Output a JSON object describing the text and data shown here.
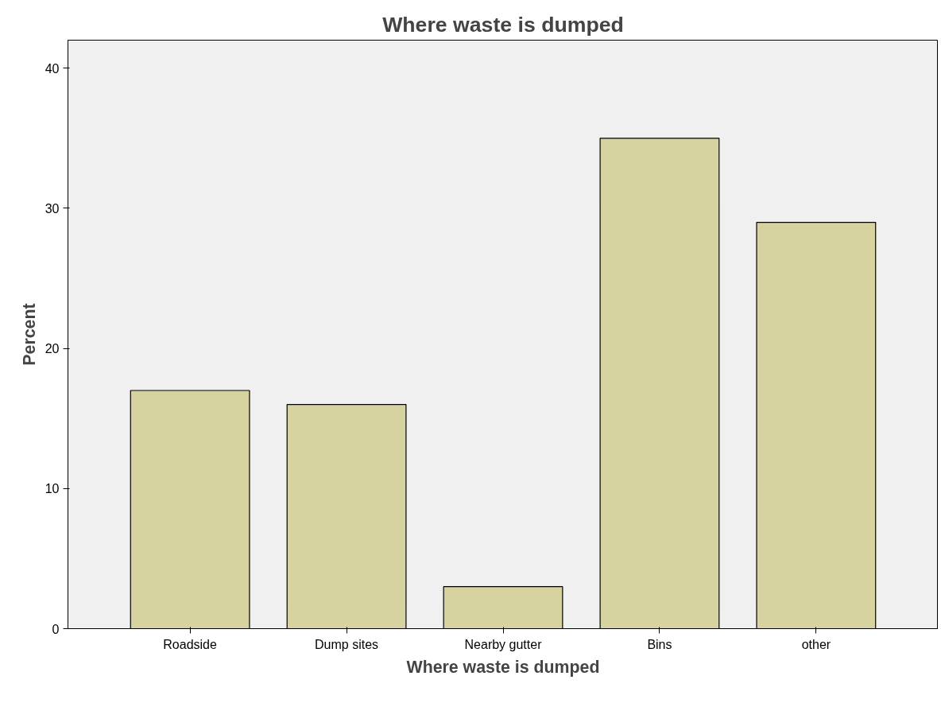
{
  "chart_data": {
    "type": "bar",
    "title": "Where waste is dumped",
    "xlabel": "Where waste is dumped",
    "ylabel": "Percent",
    "categories": [
      "Roadside",
      "Dump sites",
      "Nearby gutter",
      "Bins",
      "other"
    ],
    "values": [
      17,
      16,
      3,
      35,
      29
    ],
    "color": "#d6d3a0",
    "ylim": [
      0,
      42
    ],
    "yticks": [
      0,
      10,
      20,
      30,
      40
    ],
    "grid": false
  }
}
